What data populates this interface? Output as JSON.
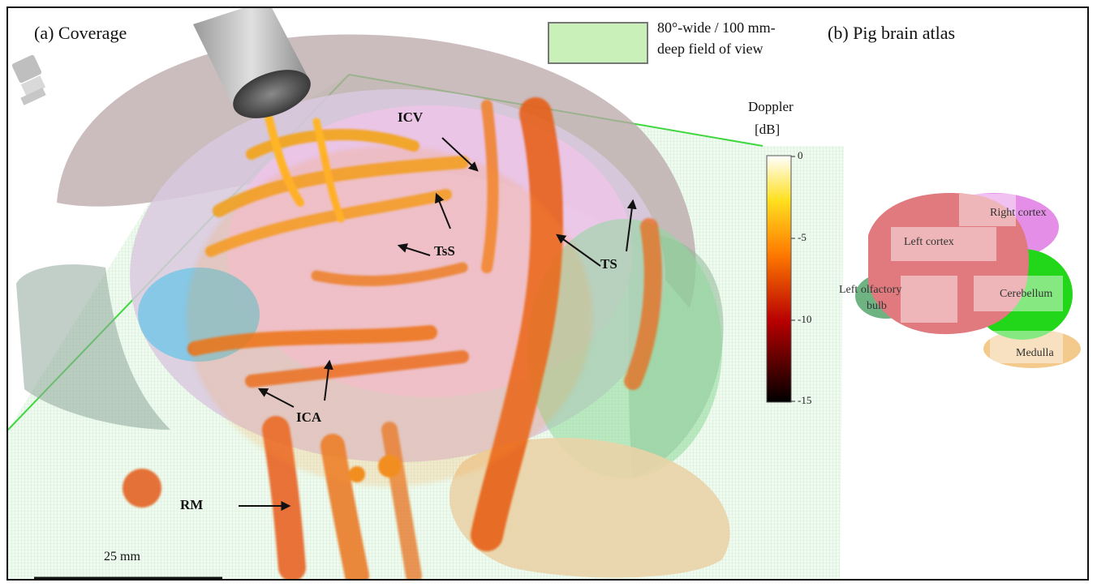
{
  "panel_a": {
    "title": "(a) Coverage",
    "fov_legend": {
      "line1": "80°-wide / 100 mm-",
      "line2": "deep field of view",
      "swatch_color": "#c8f0b8"
    },
    "colorbar": {
      "title_line1": "Doppler",
      "title_line2": "[dB]",
      "ticks": [
        "0",
        "-5",
        "-10",
        "-15"
      ],
      "range": [
        -15,
        0
      ]
    },
    "vessel_labels": {
      "icv": "ICV",
      "tss": "TsS",
      "ts": "TS",
      "ica": "ICA",
      "rm": "RM"
    },
    "scale_bar": "25 mm"
  },
  "panel_b": {
    "title": "(b) Pig brain atlas",
    "regions": {
      "right_cortex": {
        "label": "Right cortex",
        "color": "#e58ee8"
      },
      "left_cortex": {
        "label": "Left cortex",
        "color": "#e07a7e"
      },
      "left_olfactory_line1": "Left olfactory",
      "left_olfactory_line2": "bulb",
      "left_olfactory_color": "#6fb383",
      "cerebellum": {
        "label": "Cerebellum",
        "color": "#22d619"
      },
      "medulla": {
        "label": "Medulla",
        "color": "#f3c98c"
      }
    }
  }
}
